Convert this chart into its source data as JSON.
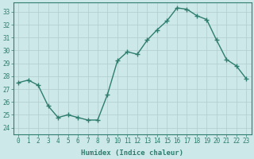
{
  "x": [
    0,
    1,
    2,
    3,
    4,
    5,
    6,
    7,
    8,
    9,
    10,
    11,
    12,
    13,
    14,
    15,
    16,
    17,
    18,
    19,
    20,
    21,
    22,
    23
  ],
  "y": [
    27.5,
    27.7,
    27.3,
    25.7,
    24.8,
    25.0,
    24.8,
    24.6,
    24.6,
    26.6,
    29.2,
    29.9,
    29.7,
    30.8,
    31.6,
    32.3,
    33.3,
    33.2,
    32.7,
    32.4,
    30.8,
    29.3,
    28.8,
    27.8
  ],
  "line_color": "#2e7d6e",
  "marker": "+",
  "marker_size": 4,
  "bg_color": "#cce8e8",
  "grid_color": "#b0cccc",
  "xlabel": "Humidex (Indice chaleur)",
  "xlim": [
    -0.5,
    23.5
  ],
  "ylim": [
    23.5,
    33.7
  ],
  "yticks": [
    24,
    25,
    26,
    27,
    28,
    29,
    30,
    31,
    32,
    33
  ],
  "xticks": [
    0,
    1,
    2,
    3,
    4,
    5,
    6,
    7,
    8,
    9,
    10,
    11,
    12,
    13,
    14,
    15,
    16,
    17,
    18,
    19,
    20,
    21,
    22,
    23
  ],
  "tick_label_fontsize": 5.5,
  "xlabel_fontsize": 6.5,
  "line_width": 1.0,
  "marker_linewidth": 1.0
}
